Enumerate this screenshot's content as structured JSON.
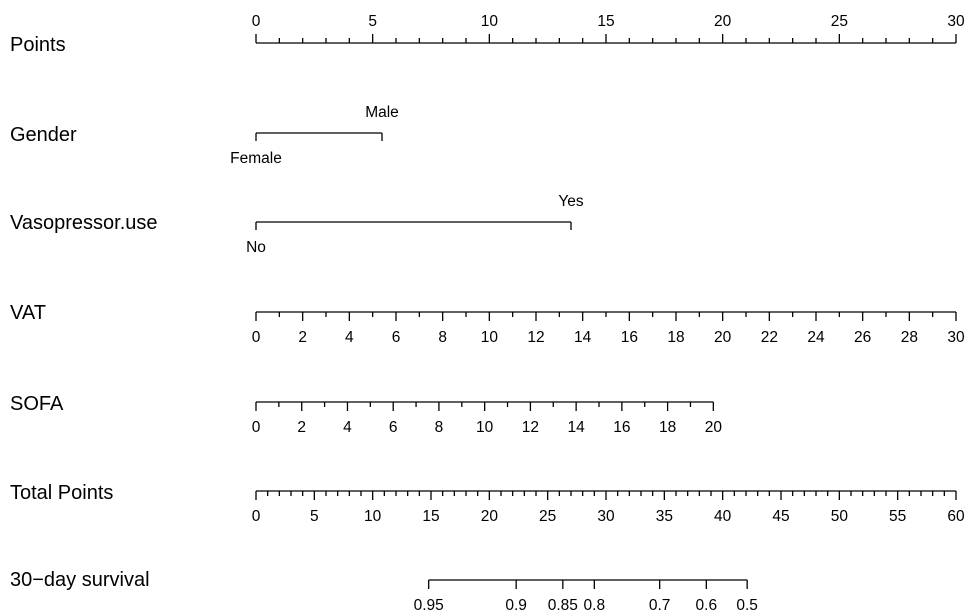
{
  "chart_data": {
    "type": "nomogram",
    "points_range": [
      0,
      30
    ],
    "rows": [
      {
        "id": "points",
        "label": "Points",
        "kind": "continuous",
        "major_ticks": [
          "0",
          "5",
          "10",
          "15",
          "20",
          "25",
          "30"
        ],
        "major_values": [
          0,
          5,
          10,
          15,
          20,
          25,
          30
        ],
        "minor_step": 1
      },
      {
        "id": "gender",
        "label": "Gender",
        "kind": "categorical",
        "levels": [
          {
            "label": "Female",
            "points": 0,
            "position": "below"
          },
          {
            "label": "Male",
            "points": 5.4,
            "position": "above"
          }
        ]
      },
      {
        "id": "vasopressor",
        "label": "Vasopressor.use",
        "kind": "categorical",
        "levels": [
          {
            "label": "No",
            "points": 0,
            "position": "below"
          },
          {
            "label": "Yes",
            "points": 13.5,
            "position": "above"
          }
        ]
      },
      {
        "id": "vat",
        "label": "VAT",
        "kind": "continuous",
        "major_ticks": [
          "0",
          "2",
          "4",
          "6",
          "8",
          "10",
          "12",
          "14",
          "16",
          "18",
          "20",
          "22",
          "24",
          "26",
          "28",
          "30"
        ],
        "points_per_unit": 1.0,
        "minor_step": 1
      },
      {
        "id": "sofa",
        "label": "SOFA",
        "kind": "continuous",
        "major_ticks": [
          "0",
          "2",
          "4",
          "6",
          "8",
          "10",
          "12",
          "14",
          "16",
          "18",
          "20"
        ],
        "points_per_unit": 0.98,
        "minor_step": 1
      },
      {
        "id": "total_points",
        "label": "Total Points",
        "kind": "continuous",
        "major_ticks": [
          "0",
          "5",
          "10",
          "15",
          "20",
          "25",
          "30",
          "35",
          "40",
          "45",
          "50",
          "55",
          "60"
        ],
        "major_values": [
          0,
          5,
          10,
          15,
          20,
          25,
          30,
          35,
          40,
          45,
          50,
          55,
          60
        ],
        "minor_step": 1,
        "axis_range": [
          0,
          60
        ]
      },
      {
        "id": "survival",
        "label": "30−day survival",
        "kind": "scale",
        "ticks": [
          {
            "label": "0.95",
            "total_points": 14.8
          },
          {
            "label": "0.9",
            "total_points": 22.3
          },
          {
            "label": "0.85",
            "total_points": 26.3
          },
          {
            "label": "0.8",
            "total_points": 29.0
          },
          {
            "label": "0.7",
            "total_points": 34.6
          },
          {
            "label": "0.6",
            "total_points": 38.6
          },
          {
            "label": "0.5",
            "total_points": 42.1
          }
        ]
      }
    ]
  }
}
